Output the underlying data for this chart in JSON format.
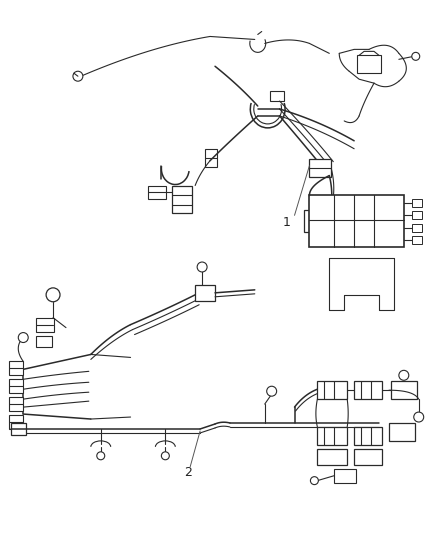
{
  "bg_color": "#ffffff",
  "line_color": "#2a2a2a",
  "lw_main": 1.4,
  "lw_thin": 0.8,
  "lw_med": 1.1,
  "label_1": "1",
  "label_2": "2",
  "fig_width": 4.39,
  "fig_height": 5.33,
  "dpi": 100
}
